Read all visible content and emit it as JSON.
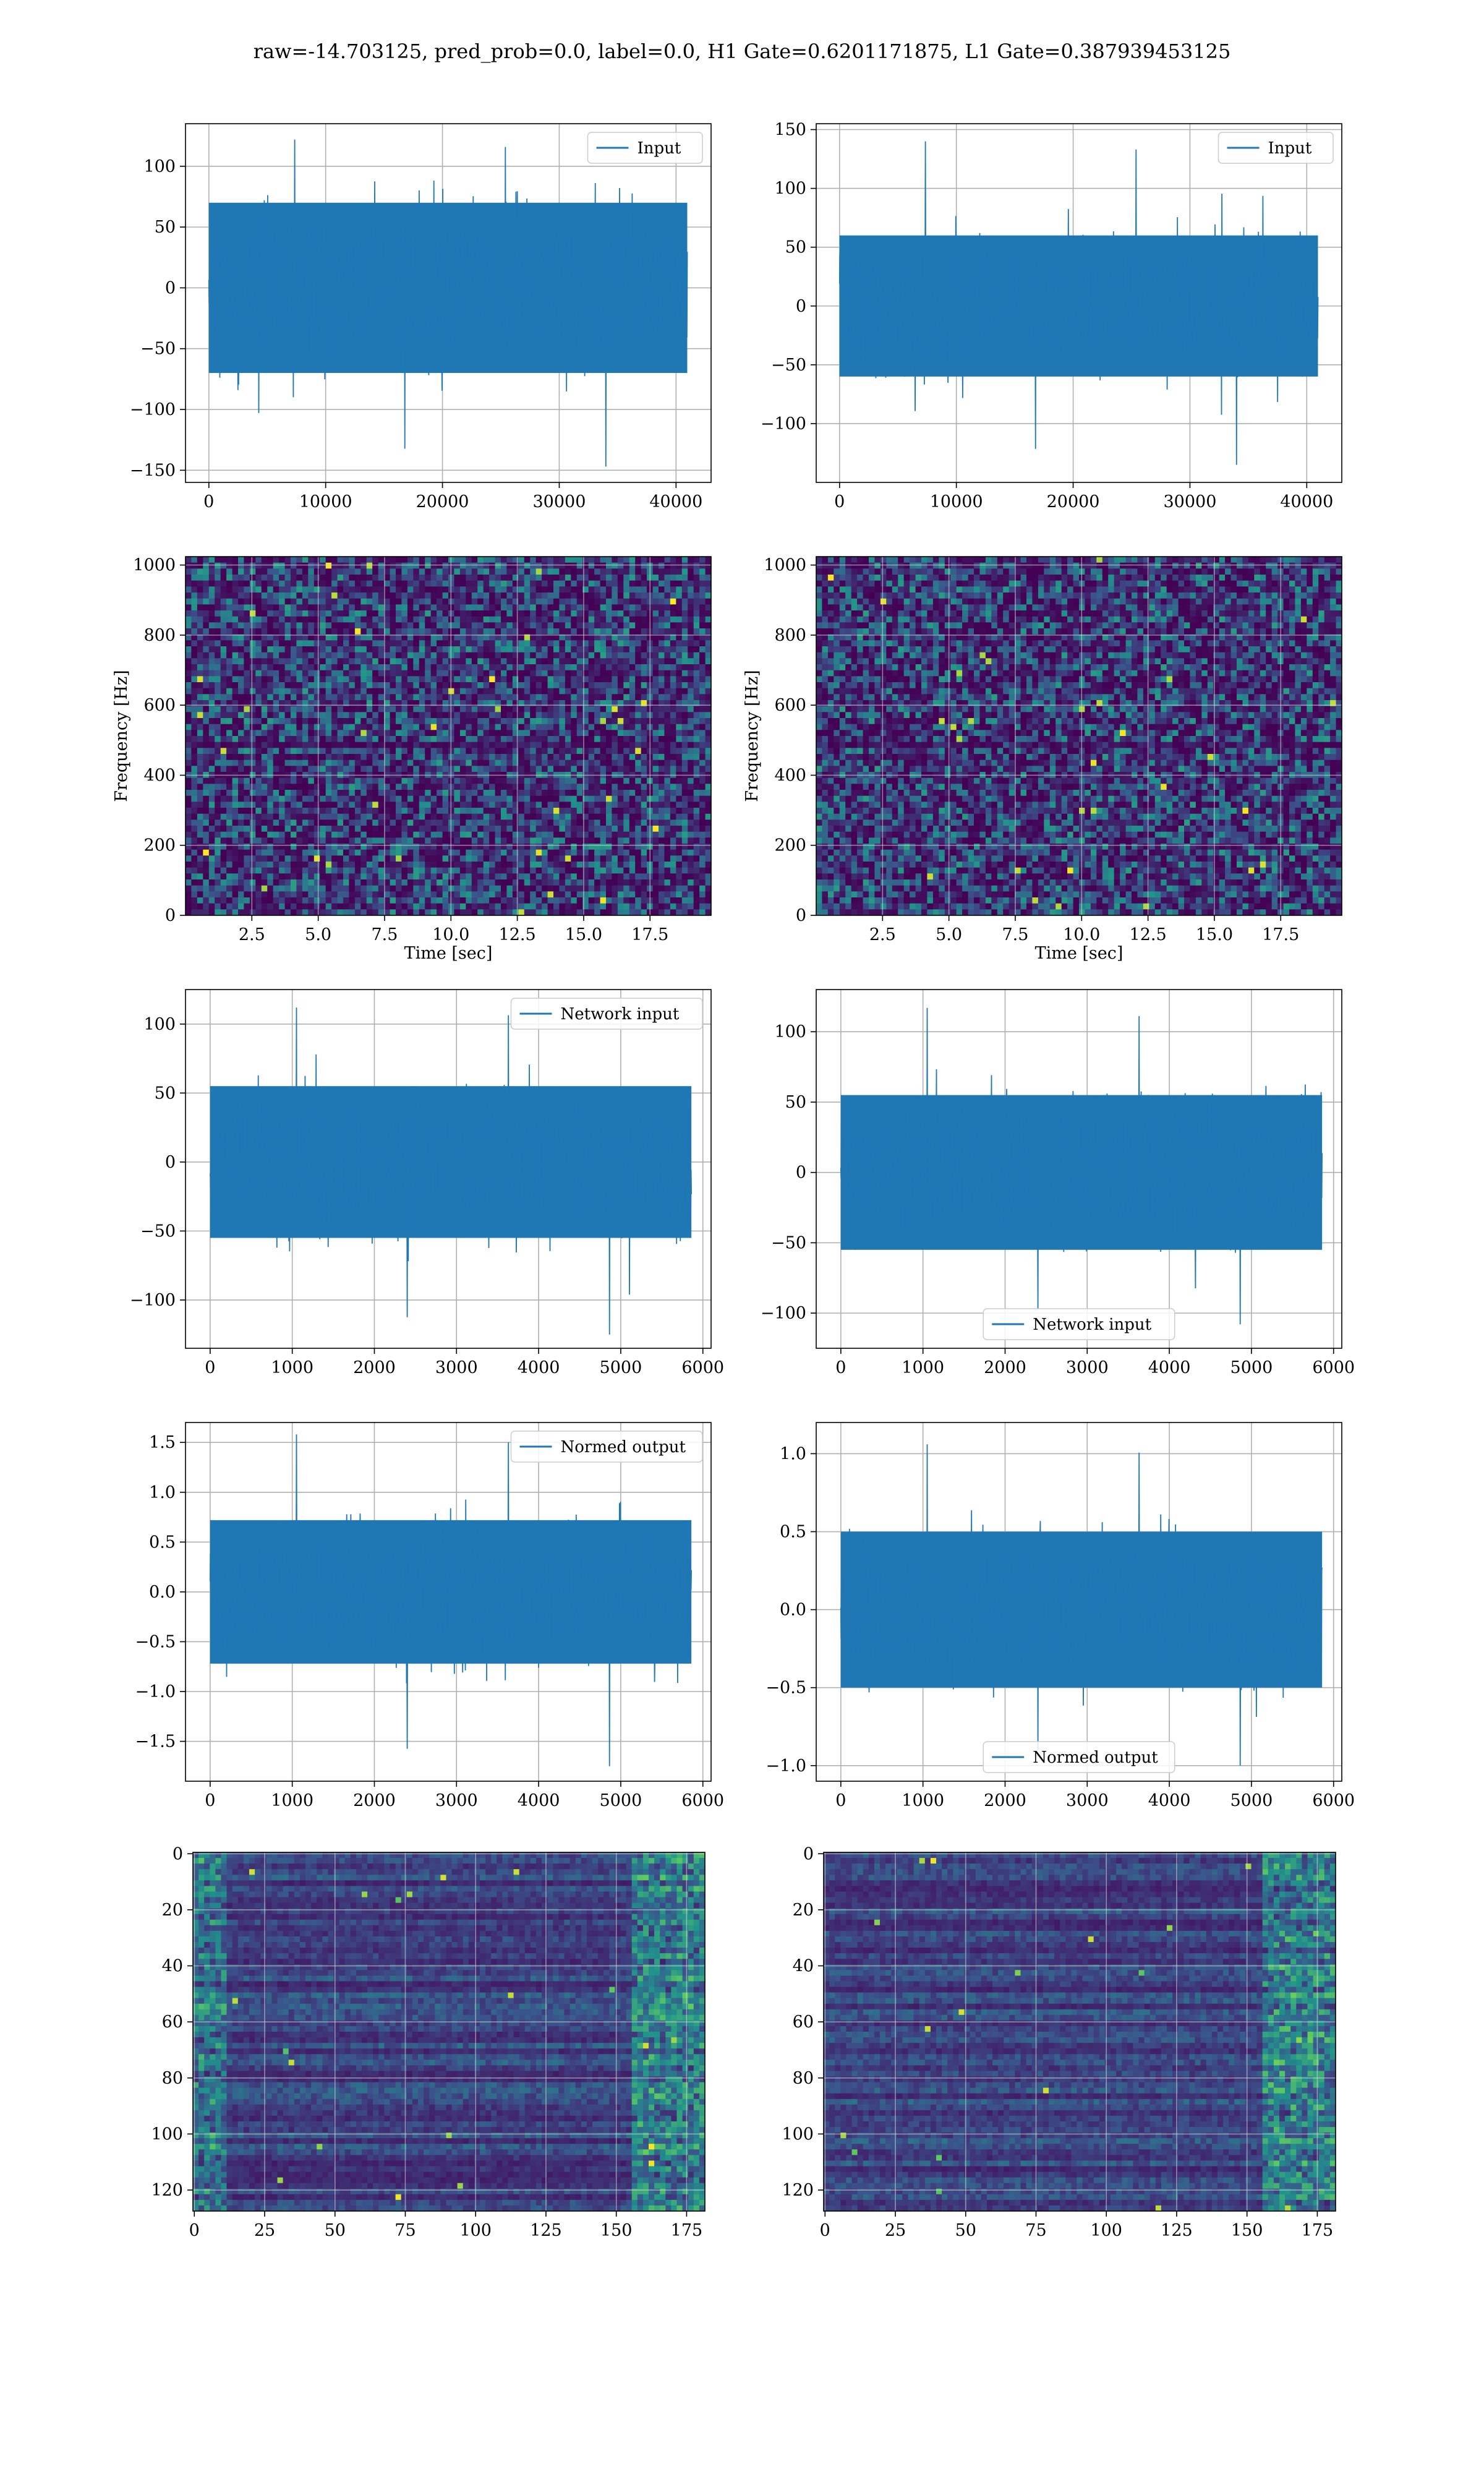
{
  "figure": {
    "title": "raw=-14.703125, pred_prob=0.0, label=0.0, H1 Gate=0.6201171875, L1 Gate=0.387939453125"
  },
  "colors": {
    "line": "#1f77b4",
    "grid": "#b0b0b0",
    "spec_bg": "#3b1f62",
    "spec_dark": "#440154",
    "spec_mid": "#31688e",
    "spec_hi": "#35b779",
    "spec_peak": "#fde725"
  },
  "chart_data": [
    {
      "id": "p1l",
      "type": "line",
      "legend": "Input",
      "legend_loc": "upper right",
      "grid": true,
      "xlim": [
        -2000,
        43000
      ],
      "ylim": [
        -160,
        135
      ],
      "xticks": [
        0,
        10000,
        20000,
        30000,
        40000
      ],
      "yticks": [
        -150,
        -100,
        -50,
        0,
        50,
        100
      ],
      "signal": {
        "x_start": 0,
        "x_end": 40960,
        "n_samples": 40960,
        "band": 70,
        "max": 122,
        "min": -147
      }
    },
    {
      "id": "p1r",
      "type": "line",
      "legend": "Input",
      "legend_loc": "upper right",
      "grid": true,
      "xlim": [
        -2000,
        43000
      ],
      "ylim": [
        -150,
        155
      ],
      "xticks": [
        0,
        10000,
        20000,
        30000,
        40000
      ],
      "yticks": [
        -100,
        -50,
        0,
        50,
        100,
        150
      ],
      "signal": {
        "x_start": 0,
        "x_end": 40960,
        "n_samples": 40960,
        "band": 60,
        "max": 140,
        "min": -135
      }
    },
    {
      "id": "p2l",
      "type": "heatmap",
      "grid": true,
      "ylabel": "Frequency [Hz]",
      "xlabel": "Time [sec]",
      "xlim": [
        0,
        19.8
      ],
      "ylim": [
        0,
        1024
      ],
      "xticks": [
        2.5,
        5.0,
        7.5,
        10.0,
        12.5,
        15.0,
        17.5
      ],
      "xtick_labels": [
        "2.5",
        "5.0",
        "7.5",
        "10.0",
        "12.5",
        "15.0",
        "17.5"
      ],
      "yticks": [
        0,
        200,
        400,
        600,
        800,
        1000
      ]
    },
    {
      "id": "p2r",
      "type": "heatmap",
      "grid": true,
      "ylabel": "Frequency [Hz]",
      "xlabel": "Time [sec]",
      "xlim": [
        0,
        19.8
      ],
      "ylim": [
        0,
        1024
      ],
      "xticks": [
        2.5,
        5.0,
        7.5,
        10.0,
        12.5,
        15.0,
        17.5
      ],
      "xtick_labels": [
        "2.5",
        "5.0",
        "7.5",
        "10.0",
        "12.5",
        "15.0",
        "17.5"
      ],
      "yticks": [
        0,
        200,
        400,
        600,
        800,
        1000
      ]
    },
    {
      "id": "p3l",
      "type": "line",
      "legend": "Network input",
      "legend_loc": "upper right",
      "grid": true,
      "xlim": [
        -300,
        6100
      ],
      "ylim": [
        -135,
        125
      ],
      "xticks": [
        0,
        1000,
        2000,
        3000,
        4000,
        5000,
        6000
      ],
      "yticks": [
        -100,
        -50,
        0,
        50,
        100
      ],
      "signal": {
        "x_start": 0,
        "x_end": 5860,
        "n_samples": 5860,
        "band": 55,
        "max": 112,
        "min": -125
      }
    },
    {
      "id": "p3r",
      "type": "line",
      "legend": "Network input",
      "legend_loc": "lower center",
      "grid": true,
      "xlim": [
        -300,
        6100
      ],
      "ylim": [
        -125,
        130
      ],
      "xticks": [
        0,
        1000,
        2000,
        3000,
        4000,
        5000,
        6000
      ],
      "yticks": [
        -100,
        -50,
        0,
        50,
        100
      ],
      "signal": {
        "x_start": 0,
        "x_end": 5860,
        "n_samples": 5860,
        "band": 55,
        "max": 117,
        "min": -108
      }
    },
    {
      "id": "p4l",
      "type": "line",
      "legend": "Normed output",
      "legend_loc": "upper right",
      "grid": true,
      "xlim": [
        -300,
        6100
      ],
      "ylim": [
        -1.9,
        1.7
      ],
      "xticks": [
        0,
        1000,
        2000,
        3000,
        4000,
        5000,
        6000
      ],
      "yticks": [
        -1.5,
        -1.0,
        -0.5,
        0.0,
        0.5,
        1.0,
        1.5
      ],
      "ytick_labels": [
        "−1.5",
        "−1.0",
        "−0.5",
        "0.0",
        "0.5",
        "1.0",
        "1.5"
      ],
      "signal": {
        "x_start": 0,
        "x_end": 5860,
        "n_samples": 5860,
        "band": 0.72,
        "max": 1.58,
        "min": -1.75
      }
    },
    {
      "id": "p4r",
      "type": "line",
      "legend": "Normed output",
      "legend_loc": "lower center",
      "grid": true,
      "xlim": [
        -300,
        6100
      ],
      "ylim": [
        -1.1,
        1.2
      ],
      "xticks": [
        0,
        1000,
        2000,
        3000,
        4000,
        5000,
        6000
      ],
      "yticks": [
        -1.0,
        -0.5,
        0.0,
        0.5,
        1.0
      ],
      "ytick_labels": [
        "−1.0",
        "−0.5",
        "0.0",
        "0.5",
        "1.0"
      ],
      "signal": {
        "x_start": 0,
        "x_end": 5860,
        "n_samples": 5860,
        "band": 0.5,
        "max": 1.06,
        "min": -1.0
      }
    },
    {
      "id": "p5l",
      "type": "heatmap",
      "grid": true,
      "y_inverted": true,
      "xlim": [
        -0.5,
        181.5
      ],
      "ylim": [
        127.5,
        -0.5
      ],
      "rows": 128,
      "cols": 182,
      "xticks": [
        0,
        25,
        50,
        75,
        100,
        125,
        150,
        175
      ],
      "yticks": [
        0,
        20,
        40,
        60,
        80,
        100,
        120
      ]
    },
    {
      "id": "p5r",
      "type": "heatmap",
      "grid": true,
      "y_inverted": true,
      "xlim": [
        -0.5,
        181.5
      ],
      "ylim": [
        127.5,
        -0.5
      ],
      "rows": 128,
      "cols": 182,
      "xticks": [
        0,
        25,
        50,
        75,
        100,
        125,
        150,
        175
      ],
      "yticks": [
        0,
        20,
        40,
        60,
        80,
        100,
        120
      ]
    }
  ]
}
